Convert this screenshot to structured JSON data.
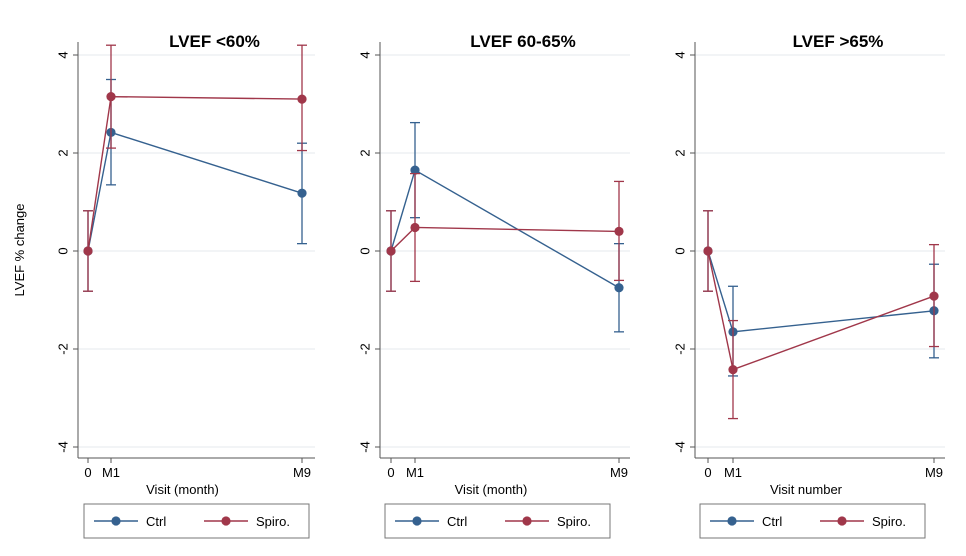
{
  "colors": {
    "ctrl": "#35618f",
    "spiro": "#a0374a",
    "grid": "#e6eaed",
    "axis": "#555555"
  },
  "chart_data": [
    {
      "type": "line",
      "title": "LVEF <60%",
      "xlabel": "Visit (month)",
      "ylabel": "LVEF % change",
      "x": [
        0,
        1,
        9
      ],
      "xticks": [
        "0",
        "M1",
        "M9"
      ],
      "ylim": [
        -4,
        4
      ],
      "yticks": [
        -4,
        -2,
        0,
        2,
        4
      ],
      "grid": true,
      "series": [
        {
          "name": "Ctrl",
          "values": [
            0,
            2.42,
            1.18
          ],
          "lower": [
            -0.82,
            1.35,
            0.15
          ],
          "upper": [
            0.82,
            3.5,
            2.2
          ]
        },
        {
          "name": "Spiro.",
          "values": [
            0,
            3.15,
            3.1
          ],
          "lower": [
            -0.82,
            2.1,
            2.05
          ],
          "upper": [
            0.82,
            4.2,
            4.2
          ]
        }
      ]
    },
    {
      "type": "line",
      "title": "LVEF 60-65%",
      "xlabel": "Visit (month)",
      "ylabel": "",
      "x": [
        0,
        1,
        9
      ],
      "xticks": [
        "0",
        "M1",
        "M9"
      ],
      "ylim": [
        -4,
        4
      ],
      "yticks": [
        -4,
        -2,
        0,
        2,
        4
      ],
      "grid": true,
      "series": [
        {
          "name": "Ctrl",
          "values": [
            0,
            1.65,
            -0.75
          ],
          "lower": [
            -0.82,
            0.68,
            -1.65
          ],
          "upper": [
            0.82,
            2.62,
            0.15
          ]
        },
        {
          "name": "Spiro.",
          "values": [
            0,
            0.48,
            0.4
          ],
          "lower": [
            -0.82,
            -0.62,
            -0.6
          ],
          "upper": [
            0.82,
            1.58,
            1.42
          ]
        }
      ]
    },
    {
      "type": "line",
      "title": "LVEF >65%",
      "xlabel": "Visit number",
      "ylabel": "",
      "x": [
        0,
        1,
        9
      ],
      "xticks": [
        "0",
        "M1",
        "M9"
      ],
      "ylim": [
        -4,
        4
      ],
      "yticks": [
        -4,
        -2,
        0,
        2,
        4
      ],
      "grid": true,
      "series": [
        {
          "name": "Ctrl",
          "values": [
            0,
            -1.65,
            -1.22
          ],
          "lower": [
            -0.82,
            -2.55,
            -2.18
          ],
          "upper": [
            0.82,
            -0.72,
            -0.27
          ]
        },
        {
          "name": "Spiro.",
          "values": [
            0,
            -2.42,
            -0.92
          ],
          "lower": [
            -0.82,
            -3.42,
            -1.95
          ],
          "upper": [
            0.82,
            -1.42,
            0.13
          ]
        }
      ]
    }
  ],
  "legend": [
    {
      "label": "Ctrl"
    },
    {
      "label": "Spiro."
    }
  ]
}
